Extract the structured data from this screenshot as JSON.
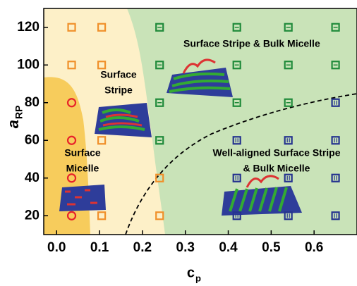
{
  "chart_data": {
    "type": "scatter",
    "x_label": {
      "main": "c",
      "sub": "p"
    },
    "y_label": {
      "main": "a",
      "sub": "RP"
    },
    "annotations": [
      "Surface Stripe & Bulk Micelle",
      "Surface",
      "Stripe",
      "Surface",
      "Micelle",
      "Well-aligned Surface Stripe",
      "&  Bulk Micelle"
    ],
    "xlim": [
      -0.03,
      0.7
    ],
    "ylim": [
      10,
      130
    ],
    "xticks": [
      {
        "value": 0,
        "label": "0.0"
      },
      0.1,
      0.2,
      0.3,
      0.4,
      0.5,
      0.6
    ],
    "yticks": [
      20,
      40,
      60,
      80,
      100,
      120
    ],
    "series": [
      {
        "color": "#e8222a",
        "marker": "circle",
        "x": [
          0.035,
          0.035,
          0.035,
          0.035
        ],
        "y": [
          80,
          60,
          40,
          20
        ]
      },
      {
        "color": "#f0902a",
        "marker": "square",
        "x": [
          0.035,
          0.035,
          0.105,
          0.105,
          0.105,
          0.105,
          0.24,
          0.24
        ],
        "y": [
          120,
          100,
          120,
          100,
          60,
          20,
          40,
          20
        ]
      },
      {
        "color": "#1f8a3a",
        "marker": "square-h",
        "x": [
          0.24,
          0.24,
          0.24,
          0.24,
          0.42,
          0.42,
          0.42,
          0.54,
          0.54,
          0.54,
          0.65,
          0.65
        ],
        "y": [
          120,
          100,
          80,
          60,
          120,
          100,
          80,
          120,
          100,
          80,
          120,
          100
        ]
      },
      {
        "color": "#25338f",
        "marker": "square-v",
        "x": [
          0.42,
          0.42,
          0.42,
          0.54,
          0.54,
          0.54,
          0.65,
          0.65,
          0.65,
          0.65
        ],
        "y": [
          60,
          40,
          20,
          60,
          40,
          20,
          80,
          60,
          40,
          20
        ]
      }
    ]
  }
}
